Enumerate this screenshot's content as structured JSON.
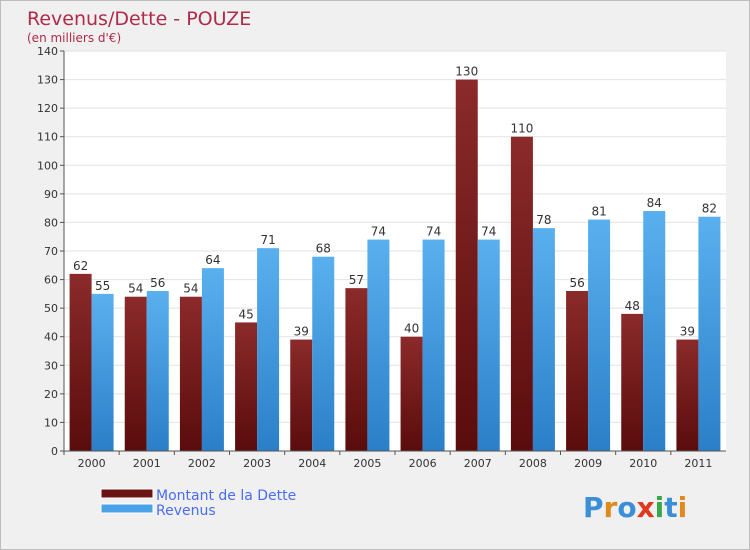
{
  "chart_data": {
    "type": "bar",
    "title": "Revenus/Dette - POUZE",
    "subtitle": "(en milliers d'€)",
    "categories": [
      "2000",
      "2001",
      "2002",
      "2003",
      "2004",
      "2005",
      "2006",
      "2007",
      "2008",
      "2009",
      "2010",
      "2011"
    ],
    "series": [
      {
        "name": "Montant de la Dette",
        "color": "#7a1f1f",
        "values": [
          62,
          54,
          54,
          45,
          39,
          57,
          40,
          130,
          110,
          56,
          48,
          39
        ]
      },
      {
        "name": "Revenus",
        "color": "#4aa3e8",
        "values": [
          55,
          56,
          64,
          71,
          68,
          74,
          74,
          74,
          78,
          81,
          84,
          82
        ]
      }
    ],
    "ylim": [
      0,
      140
    ],
    "ystep": 10,
    "grid": true,
    "legend_position": "bottom-left"
  },
  "logo": {
    "text": "Proxiti"
  }
}
